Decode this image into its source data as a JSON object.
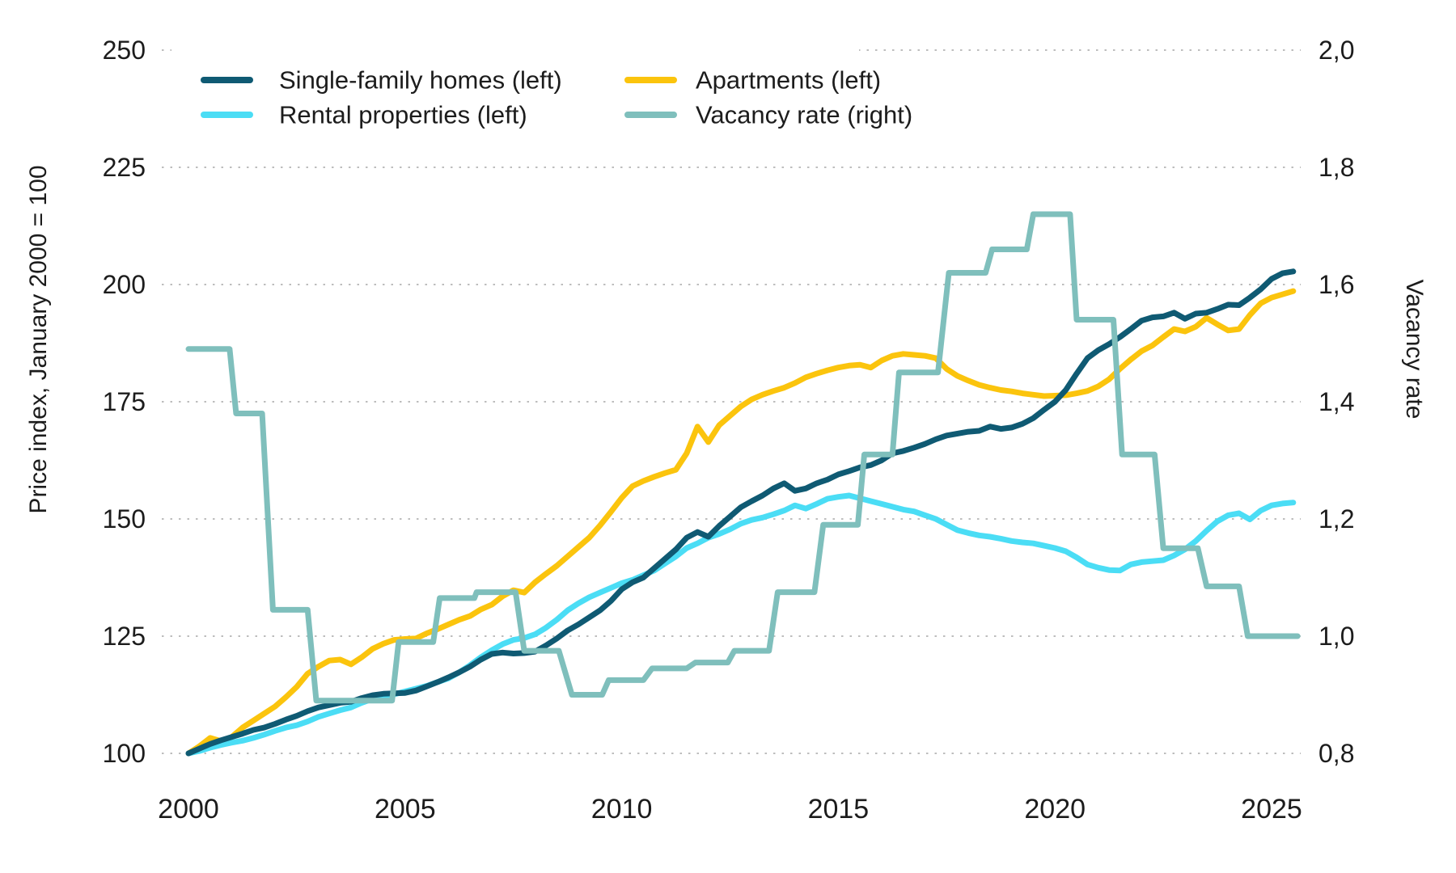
{
  "chart_data": {
    "type": "line",
    "title": "",
    "x_start": 2000,
    "x_step": 0.25,
    "x_ticks": [
      2000,
      2005,
      2010,
      2015,
      2020,
      2025
    ],
    "x_range": [
      2000,
      2025.6
    ],
    "grid": "dotted-horizontal",
    "left_axis": {
      "label": "Price index, January 2000 = 100",
      "tick_values": [
        100,
        125,
        150,
        175,
        200,
        225,
        250
      ],
      "tick_labels": [
        "100",
        "125",
        "150",
        "175",
        "200",
        "225",
        "250"
      ],
      "range": [
        100,
        250
      ]
    },
    "right_axis": {
      "label": "Vacancy rate",
      "tick_values": [
        0.8,
        1.0,
        1.2,
        1.4,
        1.6,
        1.8,
        2.0
      ],
      "tick_labels": [
        "0,8",
        "1,0",
        "1,2",
        "1,4",
        "1,6",
        "1,8",
        "2,0"
      ],
      "range": [
        0.8,
        2.0
      ]
    },
    "legend": {
      "position": "top-left-inside",
      "rows": [
        [
          "Single-family homes (left)",
          "Apartments (left)"
        ],
        [
          "Rental properties (left)",
          "Vacancy rate (right)"
        ]
      ]
    },
    "series": [
      {
        "name": "Single-family homes (left)",
        "axis": "left",
        "color": "#0F5A73",
        "values": [
          100,
          101,
          102,
          102.8,
          103.5,
          104.2,
          105,
          105.5,
          106.3,
          107.2,
          108,
          109,
          109.8,
          110.3,
          110.8,
          111,
          111.8,
          112.4,
          112.7,
          112.8,
          112.9,
          113.4,
          114.3,
          115.2,
          116.2,
          117.3,
          118.5,
          120,
          121.2,
          121.5,
          121.3,
          121.4,
          121.7,
          123,
          124.5,
          126.2,
          127.5,
          129,
          130.5,
          132.5,
          135,
          136.5,
          137.5,
          139.5,
          141.5,
          143.5,
          146,
          147.2,
          146.2,
          148.5,
          150.5,
          152.5,
          153.8,
          155,
          156.5,
          157.6,
          156,
          156.5,
          157.6,
          158.4,
          159.5,
          160.2,
          161,
          161.5,
          162.5,
          164,
          164.5,
          165.2,
          166,
          167,
          167.8,
          168.2,
          168.6,
          168.8,
          169.7,
          169.2,
          169.5,
          170.3,
          171.5,
          173.3,
          175,
          177.5,
          181,
          184.3,
          186,
          187.3,
          188.8,
          190.5,
          192.3,
          193,
          193.2,
          194,
          192.7,
          193.8,
          194,
          194.8,
          195.7,
          195.6,
          197.2,
          199,
          201.2,
          202.4,
          202.8
        ]
      },
      {
        "name": "Rental properties (left)",
        "axis": "left",
        "color": "#4BDDF5",
        "values": [
          100,
          100.5,
          101.2,
          101.8,
          102.3,
          102.7,
          103.3,
          104,
          104.8,
          105.5,
          106,
          106.8,
          107.8,
          108.5,
          109.2,
          109.8,
          110.8,
          111.6,
          112.2,
          112.6,
          113.2,
          113.8,
          114.4,
          115.2,
          116,
          117.3,
          118.8,
          120.5,
          122,
          123.3,
          124.2,
          124.6,
          125.4,
          126.8,
          128.5,
          130.5,
          132,
          133.3,
          134.3,
          135.3,
          136.3,
          137,
          138,
          139,
          140.5,
          142,
          143.8,
          144.8,
          146,
          146.8,
          147.8,
          149,
          149.8,
          150.3,
          151,
          151.8,
          152.9,
          152.2,
          153.2,
          154.3,
          154.7,
          155,
          154.4,
          153.8,
          153.2,
          152.6,
          152,
          151.6,
          150.8,
          150,
          148.8,
          147.6,
          147,
          146.5,
          146.2,
          145.8,
          145.3,
          145,
          144.8,
          144.3,
          143.8,
          143.1,
          141.8,
          140.3,
          139.6,
          139.1,
          139,
          140.3,
          140.8,
          141,
          141.2,
          142.2,
          143.5,
          145.3,
          147.5,
          149.5,
          150.8,
          151.2,
          149.9,
          151.8,
          152.9,
          153.3,
          153.5
        ]
      },
      {
        "name": "Apartments (left)",
        "axis": "left",
        "color": "#FBC40D",
        "values": [
          100,
          101.5,
          103.3,
          102.6,
          103.5,
          105.5,
          107,
          108.5,
          110,
          112,
          114.2,
          117,
          118.5,
          119.8,
          120,
          119,
          120.5,
          122.3,
          123.4,
          124.2,
          124.4,
          124.5,
          125.6,
          126.5,
          127.5,
          128.5,
          129.3,
          130.7,
          131.7,
          133.5,
          134.8,
          134.3,
          136.5,
          138.3,
          140,
          142,
          144,
          146,
          148.6,
          151.5,
          154.5,
          157,
          158.1,
          159,
          159.8,
          160.5,
          164,
          169.7,
          166.4,
          170,
          172,
          174,
          175.5,
          176.5,
          177.3,
          178,
          179,
          180.2,
          181,
          181.7,
          182.3,
          182.7,
          182.9,
          182.3,
          183.8,
          184.8,
          185.2,
          185,
          184.8,
          184.3,
          182,
          180.5,
          179.5,
          178.6,
          178,
          177.5,
          177.2,
          176.8,
          176.5,
          176.2,
          176.3,
          176.4,
          176.8,
          177.3,
          178.3,
          179.8,
          182,
          184,
          185.8,
          187,
          188.8,
          190.5,
          190,
          191,
          192.9,
          191.5,
          190.2,
          190.5,
          193.5,
          196,
          197.2,
          197.9,
          198.6
        ]
      },
      {
        "name": "Vacancy rate (right)",
        "axis": "right",
        "color": "#7FBFBC",
        "steps": [
          [
            2000.0,
            2000.95,
            1.49
          ],
          [
            2001.1,
            2001.7,
            1.38
          ],
          [
            2001.95,
            2002.75,
            1.045
          ],
          [
            2002.95,
            2004.7,
            0.89
          ],
          [
            2004.85,
            2005.65,
            0.99
          ],
          [
            2005.8,
            2006.6,
            1.065
          ],
          [
            2006.65,
            2007.55,
            1.075
          ],
          [
            2007.75,
            2008.55,
            0.975
          ],
          [
            2008.85,
            2009.55,
            0.9
          ],
          [
            2009.7,
            2010.5,
            0.925
          ],
          [
            2010.7,
            2011.5,
            0.945
          ],
          [
            2011.7,
            2012.45,
            0.955
          ],
          [
            2012.6,
            2013.4,
            0.975
          ],
          [
            2013.6,
            2014.45,
            1.075
          ],
          [
            2014.65,
            2015.45,
            1.19
          ],
          [
            2015.6,
            2016.25,
            1.31
          ],
          [
            2016.4,
            2017.3,
            1.45
          ],
          [
            2017.55,
            2018.4,
            1.62
          ],
          [
            2018.55,
            2019.35,
            1.66
          ],
          [
            2019.5,
            2020.35,
            1.72
          ],
          [
            2020.5,
            2021.35,
            1.54
          ],
          [
            2021.55,
            2022.3,
            1.31
          ],
          [
            2022.5,
            2023.3,
            1.15
          ],
          [
            2023.5,
            2024.25,
            1.085
          ],
          [
            2024.45,
            2025.6,
            1.0
          ]
        ]
      }
    ],
    "style": {
      "grid_color": "#bdbdbd",
      "text_color": "#1c1c1c",
      "line_width": 7,
      "background": "#ffffff"
    }
  }
}
